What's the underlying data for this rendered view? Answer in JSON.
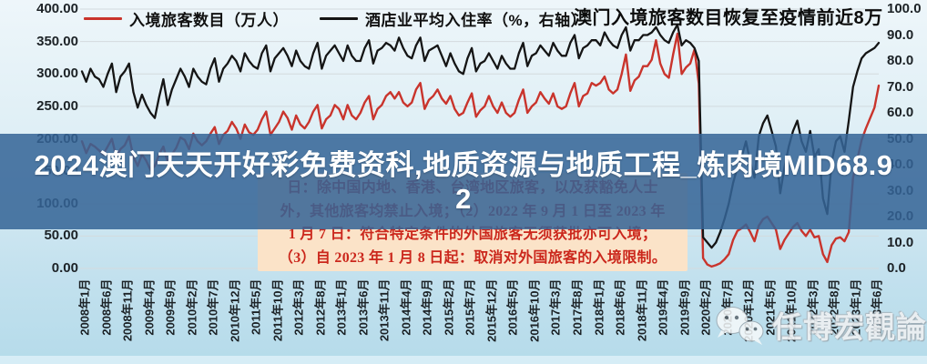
{
  "banner": {
    "line1": "2024澳门天天开好彩免费资科,地质资源与地质工程_炼肉境MID68.9",
    "line2": "2",
    "bg_color": "rgba(52,100,150,0.86)"
  },
  "annotation": {
    "bg_color": "#fbe3c8",
    "text_color": "#cb271c",
    "lines": [
      "日：除中国内地、香港、台湾地区旅客，以及获豁免人士",
      "外，其他旅客均禁止入境；（2）2022 年 9 月 1 日至 2023 年",
      "1 月 7 日：符合特定条件的外国旅客无须获批亦可入境；",
      "（3）自 2023 年 1 月 8 日起：取消对外国旅客的入境限制。"
    ]
  },
  "watermark": {
    "text": "任博宏觀論道",
    "icon": "wechat-icon"
  },
  "chart_data": {
    "type": "line",
    "title": "澳门入境旅客数目恢复至疫情前近8万",
    "grid": true,
    "x_unit": "month",
    "x_range": [
      "2008年1月",
      "2023年7月"
    ],
    "x_tick_labels": [
      "2008年1月",
      "2008年6月",
      "2008年11月",
      "2009年4月",
      "2009年9月",
      "2010年2月",
      "2010年7月",
      "2010年12月",
      "2011年5月",
      "2011年10月",
      "2012年3月",
      "2012年8月",
      "2013年1月",
      "2013年6月",
      "2013年11月",
      "2014年4月",
      "2014年9月",
      "2015年2月",
      "2015年7月",
      "2015年12月",
      "2016年5月",
      "2016年10月",
      "2017年3月",
      "2017年8月",
      "2018年1月",
      "2018年6月",
      "2018年11月",
      "2019年4月",
      "2019年9月",
      "2020年2月",
      "2020年7月",
      "2020年12月",
      "2021年5月",
      "2021年10月",
      "2022年3月",
      "2022年8月",
      "2023年1月",
      "2023年6月"
    ],
    "left_axis": {
      "min": 0,
      "max": 400,
      "step": 50,
      "tick_labels": [
        "400.00",
        "350.00",
        "300.00",
        "250.00",
        "200.00",
        "150.00",
        "100.00",
        "50.00",
        "0.00"
      ]
    },
    "right_axis": {
      "min": 0,
      "max": 100,
      "step": 10,
      "tick_labels": [
        "100.0",
        "90.0",
        "80.0",
        "70.0",
        "60.0",
        "50.0",
        "40.0",
        "30.0",
        "20.0",
        "10.0",
        "0.0"
      ]
    },
    "legend": [
      {
        "name": "入境旅客数目（万人）",
        "color": "#c9342c",
        "axis": "left"
      },
      {
        "name": "酒店业平均入住率（%，右轴）",
        "color": "#151515",
        "axis": "right"
      }
    ],
    "series": [
      {
        "name": "入境旅客数目（万人）",
        "axis": "left",
        "color": "#c9342c",
        "values": [
          196,
          178,
          192,
          188,
          182,
          176,
          188,
          200,
          172,
          184,
          190,
          204,
          172,
          158,
          176,
          166,
          152,
          158,
          176,
          188,
          164,
          176,
          186,
          202,
          198,
          184,
          208,
          196,
          190,
          196,
          208,
          218,
          192,
          206,
          212,
          226,
          216,
          200,
          222,
          210,
          206,
          214,
          230,
          242,
          206,
          216,
          226,
          242,
          232,
          214,
          236,
          222,
          216,
          226,
          242,
          252,
          216,
          230,
          236,
          252,
          246,
          230,
          252,
          236,
          230,
          240,
          256,
          266,
          230,
          246,
          252,
          266,
          272,
          262,
          272,
          256,
          250,
          256,
          276,
          286,
          246,
          260,
          266,
          276,
          262,
          254,
          266,
          246,
          236,
          240,
          256,
          270,
          234,
          244,
          250,
          266,
          250,
          240,
          256,
          240,
          234,
          240,
          260,
          276,
          240,
          250,
          256,
          272,
          262,
          254,
          270,
          250,
          246,
          250,
          270,
          286,
          250,
          266,
          270,
          286,
          282,
          286,
          296,
          276,
          270,
          276,
          300,
          330,
          274,
          290,
          296,
          312,
          312,
          322,
          352,
          316,
          300,
          294,
          330,
          362,
          300,
          310,
          316,
          338,
          285,
          16,
          6,
          3,
          5,
          8,
          14,
          22,
          44,
          58,
          62,
          68,
          56,
          42,
          66,
          76,
          80,
          70,
          60,
          30,
          44,
          54,
          64,
          70,
          58,
          50,
          60,
          48,
          50,
          22,
          10,
          36,
          46,
          48,
          42,
          56,
          140,
          168,
          198,
          216,
          232,
          248,
          282
        ]
      },
      {
        "name": "酒店业平均入住率（%，右轴）",
        "axis": "right",
        "color": "#151515",
        "values": [
          76,
          72,
          77,
          74,
          73,
          70,
          75,
          79,
          68,
          74,
          76,
          79,
          68,
          62,
          67,
          63,
          60,
          58,
          66,
          73,
          63,
          69,
          73,
          77,
          74,
          70,
          77,
          74,
          72,
          71,
          77,
          81,
          72,
          77,
          79,
          82,
          80,
          76,
          83,
          80,
          78,
          77,
          83,
          86,
          76,
          81,
          83,
          85,
          82,
          78,
          84,
          80,
          78,
          77,
          83,
          87,
          77,
          82,
          84,
          86,
          83,
          80,
          86,
          82,
          80,
          80,
          85,
          88,
          79,
          84,
          85,
          87,
          86,
          84,
          89,
          85,
          82,
          81,
          86,
          89,
          80,
          84,
          85,
          86,
          82,
          78,
          83,
          79,
          76,
          75,
          81,
          85,
          76,
          79,
          80,
          83,
          80,
          77,
          82,
          79,
          77,
          77,
          83,
          87,
          78,
          82,
          83,
          86,
          84,
          82,
          87,
          84,
          82,
          82,
          87,
          90,
          81,
          85,
          86,
          88,
          88,
          86,
          91,
          88,
          86,
          85,
          90,
          93,
          84,
          88,
          88,
          90,
          90,
          91,
          93,
          90,
          88,
          87,
          91,
          94,
          86,
          88,
          87,
          85,
          80,
          12,
          10,
          8,
          10,
          14,
          19,
          25,
          33,
          39,
          43,
          49,
          41,
          35,
          51,
          56,
          59,
          53,
          47,
          29,
          39,
          47,
          53,
          57,
          49,
          45,
          53,
          43,
          46,
          27,
          21,
          41,
          49,
          51,
          45,
          57,
          70,
          76,
          81,
          83,
          84,
          85,
          87
        ]
      }
    ]
  }
}
